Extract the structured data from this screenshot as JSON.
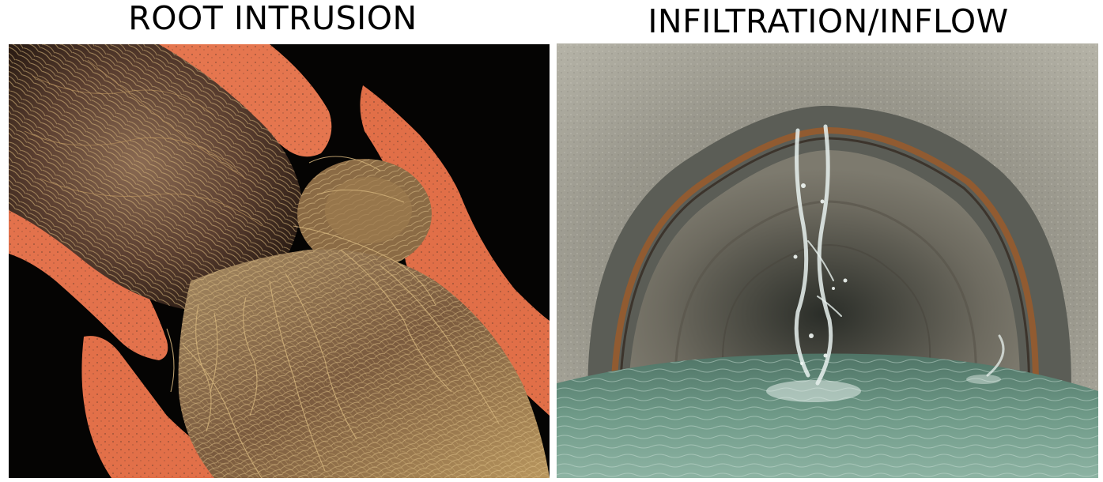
{
  "panels": [
    {
      "title": "ROOT INTRUSION",
      "image_subject": "root-intrusion-pipe-joint"
    },
    {
      "title": "INFILTRATION/INFLOW",
      "image_subject": "infiltration-inflow-sewer-pipe"
    }
  ],
  "colors": {
    "background": "#ffffff",
    "title_text": "#000000",
    "pipe_terracotta": "#e5764f",
    "root_mass": "#6b4a35",
    "root_strands": "#c8a56a",
    "concrete_pipe": "#9a9a90",
    "water": "#6f9a88"
  }
}
